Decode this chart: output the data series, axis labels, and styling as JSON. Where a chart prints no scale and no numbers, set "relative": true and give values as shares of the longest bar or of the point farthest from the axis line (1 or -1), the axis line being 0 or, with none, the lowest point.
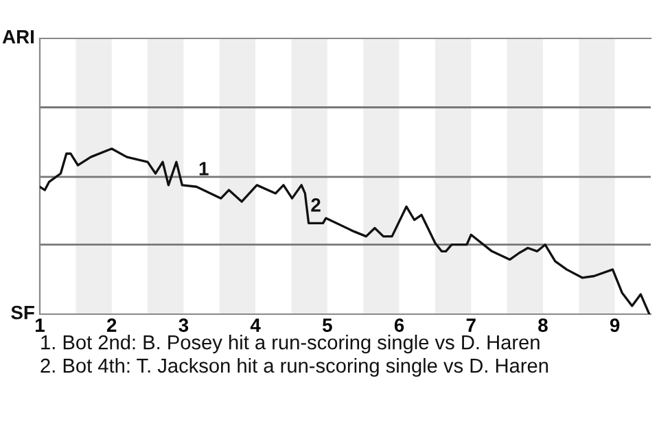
{
  "chart_data": {
    "type": "line",
    "relative": true,
    "x": [
      1.0,
      1.07,
      1.13,
      1.29,
      1.37,
      1.43,
      1.53,
      1.71,
      2.0,
      2.21,
      2.5,
      2.61,
      2.71,
      2.79,
      2.9,
      2.98,
      3.18,
      3.52,
      3.63,
      3.81,
      4.02,
      4.28,
      4.39,
      4.51,
      4.64,
      4.69,
      4.74,
      4.94,
      4.98,
      5.37,
      5.54,
      5.66,
      5.78,
      5.9,
      6.1,
      6.21,
      6.31,
      6.5,
      6.59,
      6.65,
      6.73,
      6.94,
      7.0,
      7.29,
      7.54,
      7.67,
      7.79,
      7.92,
      8.03,
      8.17,
      8.33,
      8.55,
      8.71,
      8.97,
      9.1,
      9.24,
      9.36,
      9.48
    ],
    "series": [
      {
        "color": "#111111",
        "values": [
          0.77,
          0.75,
          0.8,
          0.85,
          0.97,
          0.97,
          0.9,
          0.95,
          1,
          0.95,
          0.92,
          0.85,
          0.92,
          0.78,
          0.92,
          0.78,
          0.77,
          0.7,
          0.75,
          0.68,
          0.78,
          0.73,
          0.78,
          0.7,
          0.78,
          0.73,
          0.55,
          0.55,
          0.58,
          0.5,
          0.47,
          0.52,
          0.47,
          0.47,
          0.65,
          0.57,
          0.6,
          0.43,
          0.38,
          0.38,
          0.42,
          0.42,
          0.48,
          0.38,
          0.33,
          0.37,
          0.4,
          0.38,
          0.42,
          0.32,
          0.27,
          0.22,
          0.23,
          0.27,
          0.13,
          0.05,
          0.12,
          0
        ]
      }
    ],
    "xlim": [
      1,
      9.5
    ],
    "xticks": [
      1,
      2,
      3,
      4,
      5,
      6,
      7,
      8,
      9
    ],
    "ref_lines": [
      {
        "axis": "y",
        "value": 0.42,
        "color": "#777777"
      },
      {
        "axis": "y",
        "value": 0.83,
        "color": "#777777"
      },
      {
        "axis": "y",
        "value": 1.25,
        "color": "#777777"
      }
    ],
    "marker": "none",
    "line_style": "solid",
    "bands": [
      {
        "axis": "x",
        "from": 1.5,
        "to": 2,
        "color": "#eeeeee"
      },
      {
        "axis": "x",
        "from": 2.5,
        "to": 3,
        "color": "#eeeeee"
      },
      {
        "axis": "x",
        "from": 3.5,
        "to": 4,
        "color": "#eeeeee"
      },
      {
        "axis": "x",
        "from": 4.5,
        "to": 5,
        "color": "#eeeeee"
      },
      {
        "axis": "x",
        "from": 5.5,
        "to": 6,
        "color": "#eeeeee"
      },
      {
        "axis": "x",
        "from": 6.5,
        "to": 7,
        "color": "#eeeeee"
      },
      {
        "axis": "x",
        "from": 7.5,
        "to": 8,
        "color": "#eeeeee"
      },
      {
        "axis": "x",
        "from": 8.5,
        "to": 9,
        "color": "#eeeeee"
      }
    ],
    "annotations": [
      {
        "text": "1",
        "x": 3.18,
        "y": 0.77
      },
      {
        "text": "2",
        "x": 4.74,
        "y": 0.55
      },
      "ARI",
      "SF",
      "1. Bot 2nd: B. Posey hit a run-scoring single vs D. Haren",
      "2. Bot 4th: T. Jackson hit a run-scoring single vs D. Haren"
    ]
  }
}
